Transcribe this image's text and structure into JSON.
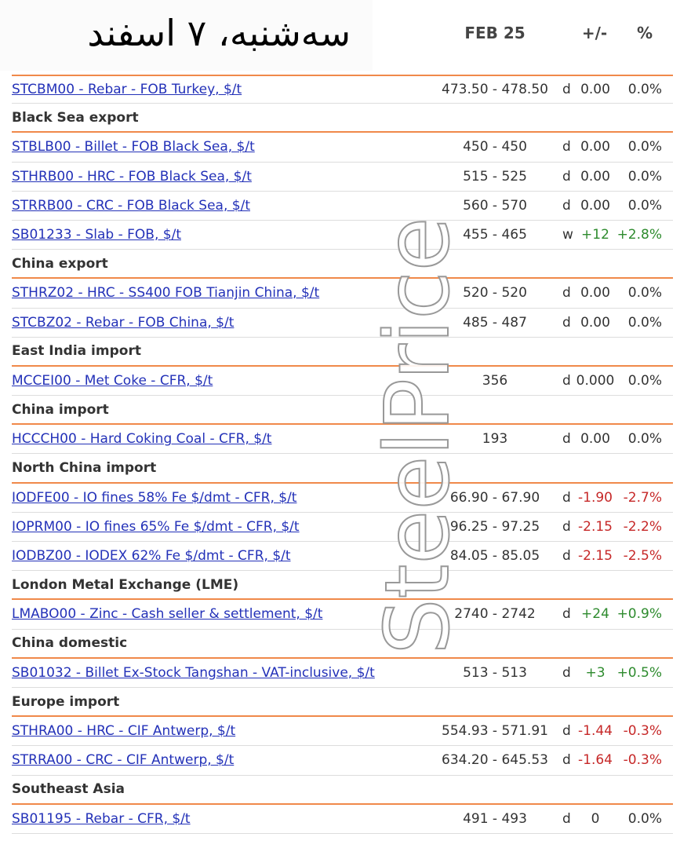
{
  "header": {
    "title": "سه‌شنبه، ۷ اسفند",
    "columns": [
      "FEB 25",
      "+/-",
      "%"
    ]
  },
  "watermark": "SteelPrice",
  "sections": [
    {
      "rows": [
        {
          "name": "STCBM00 - Rebar - FOB Turkey, $/t",
          "price": "473.50 - 478.50",
          "freq": "d",
          "change": "0.00",
          "pct": "0.0%"
        }
      ]
    },
    {
      "name": "Black Sea export",
      "rows": [
        {
          "name": "STBLB00 - Billet - FOB Black Sea, $/t",
          "price": "450 - 450",
          "freq": "d",
          "change": "0.00",
          "pct": "0.0%"
        },
        {
          "name": "STHRB00 - HRC - FOB Black Sea, $/t",
          "price": "515 - 525",
          "freq": "d",
          "change": "0.00",
          "pct": "0.0%"
        },
        {
          "name": "STRRB00 - CRC - FOB Black Sea, $/t",
          "price": "560 - 570",
          "freq": "d",
          "change": "0.00",
          "pct": "0.0%"
        },
        {
          "name": "SB01233 - Slab - FOB, $/t",
          "price": "455 - 465",
          "freq": "w",
          "change": "+12",
          "pct": "+2.8%"
        }
      ]
    },
    {
      "name": "China export",
      "rows": [
        {
          "name": "STHRZ02 - HRC - SS400 FOB Tianjin China, $/t",
          "price": "520 - 520",
          "freq": "d",
          "change": "0.00",
          "pct": "0.0%"
        },
        {
          "name": "STCBZ02 - Rebar - FOB China, $/t",
          "price": "485 - 487",
          "freq": "d",
          "change": "0.00",
          "pct": "0.0%"
        }
      ]
    },
    {
      "name": "East India import",
      "rows": [
        {
          "name": "MCCEI00 - Met Coke - CFR, $/t",
          "price": "356",
          "freq": "d",
          "change": "0.000",
          "pct": "0.0%"
        }
      ]
    },
    {
      "name": "China import",
      "rows": [
        {
          "name": "HCCCH00 - Hard Coking Coal - CFR, $/t",
          "price": "193",
          "freq": "d",
          "change": "0.00",
          "pct": "0.0%"
        }
      ]
    },
    {
      "name": "North China import",
      "rows": [
        {
          "name": "IODFE00 - IO fines 58% Fe $/dmt - CFR, $/t",
          "price": "66.90 - 67.90",
          "freq": "d",
          "change": "-1.90",
          "pct": "-2.7%"
        },
        {
          "name": "IOPRM00 - IO fines 65% Fe $/dmt - CFR, $/t",
          "price": "96.25 - 97.25",
          "freq": "d",
          "change": "-2.15",
          "pct": "-2.2%"
        },
        {
          "name": "IODBZ00 - IODEX 62% Fe $/dmt - CFR, $/t",
          "price": "84.05 - 85.05",
          "freq": "d",
          "change": "-2.15",
          "pct": "-2.5%"
        }
      ]
    },
    {
      "name": "London Metal Exchange (LME)",
      "rows": [
        {
          "name": "LMABO00 - Zinc - Cash seller & settlement, $/t",
          "price": "2740 - 2742",
          "freq": "d",
          "change": "+24",
          "pct": "+0.9%"
        }
      ]
    },
    {
      "name": "China domestic",
      "rows": [
        {
          "name": "SB01032 - Billet Ex-Stock Tangshan - VAT-inclusive, $/t",
          "price": "513 - 513",
          "freq": "d",
          "change": "+3",
          "pct": "+0.5%"
        }
      ]
    },
    {
      "name": "Europe import",
      "rows": [
        {
          "name": "STHRA00 - HRC - CIF Antwerp, $/t",
          "price": "554.93 - 571.91",
          "freq": "d",
          "change": "-1.44",
          "pct": "-0.3%"
        },
        {
          "name": "STRRA00 - CRC - CIF Antwerp, $/t",
          "price": "634.20 - 645.53",
          "freq": "d",
          "change": "-1.64",
          "pct": "-0.3%"
        }
      ]
    },
    {
      "name": "Southeast Asia",
      "rows": [
        {
          "name": "SB01195 - Rebar - CFR, $/t",
          "price": "491 - 493",
          "freq": "d",
          "change": "0",
          "pct": "0.0%"
        }
      ]
    }
  ]
}
